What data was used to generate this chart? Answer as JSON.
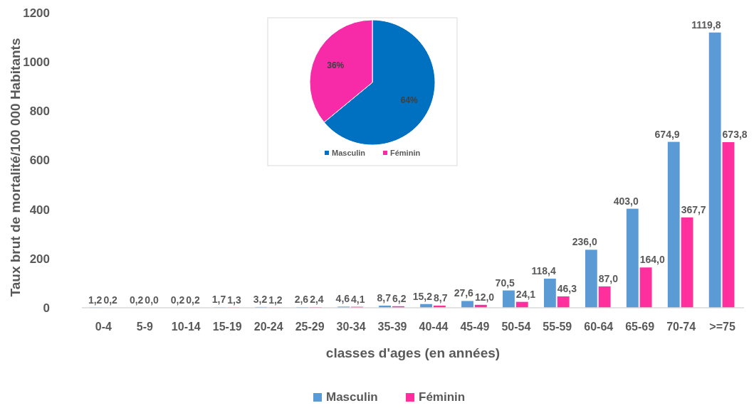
{
  "chart_data": [
    {
      "type": "bar",
      "xlabel": "classes d'ages (en années)",
      "ylabel": "Taux brut de mortalité/100 000 Habitants",
      "categories": [
        "0-4",
        "5-9",
        "10-14",
        "15-19",
        "20-24",
        "25-29",
        "30-34",
        "35-39",
        "40-44",
        "45-49",
        "50-54",
        "55-59",
        "60-64",
        "65-69",
        "70-74",
        ">=75"
      ],
      "series": [
        {
          "name": "Masculin",
          "color": "#5b9bd5",
          "values": [
            1.2,
            0.2,
            0.2,
            1.7,
            3.2,
            2.6,
            4.6,
            8.7,
            15.2,
            27.6,
            70.5,
            118.4,
            236.0,
            403.0,
            674.9,
            1119.8
          ],
          "value_labels": [
            "1,2",
            "0,2",
            "0,2",
            "1,7",
            "3,2",
            "2,6",
            "4,6",
            "8,7",
            "15,2",
            "27,6",
            "70,5",
            "118,4",
            "236,0",
            "403,0",
            "674,9",
            "1119,8"
          ]
        },
        {
          "name": "Féminin",
          "color": "#ff2f9e",
          "values": [
            0.2,
            0.0,
            0.2,
            1.3,
            1.2,
            2.4,
            4.1,
            6.2,
            8.7,
            12.0,
            24.1,
            46.3,
            87.0,
            164.0,
            367.7,
            673.8
          ],
          "value_labels": [
            "0,2",
            "0,0",
            "0,2",
            "1,3",
            "1,2",
            "2,4",
            "4,1",
            "6,2",
            "8,7",
            "12,0",
            "24,1",
            "46,3",
            "87,0",
            "164,0",
            "367,7",
            "673,8"
          ]
        }
      ],
      "ylim": [
        0,
        1200
      ],
      "yticks": [
        0,
        200,
        400,
        600,
        800,
        1000,
        1200
      ],
      "grid": false,
      "legend": "bottom"
    },
    {
      "type": "pie",
      "categories": [
        "Masculin",
        "Féminin"
      ],
      "values": [
        64,
        36
      ],
      "colors": [
        "#0070c0",
        "#f72aa8"
      ],
      "value_labels": [
        "64%",
        "36%"
      ],
      "legend": "bottom"
    }
  ]
}
